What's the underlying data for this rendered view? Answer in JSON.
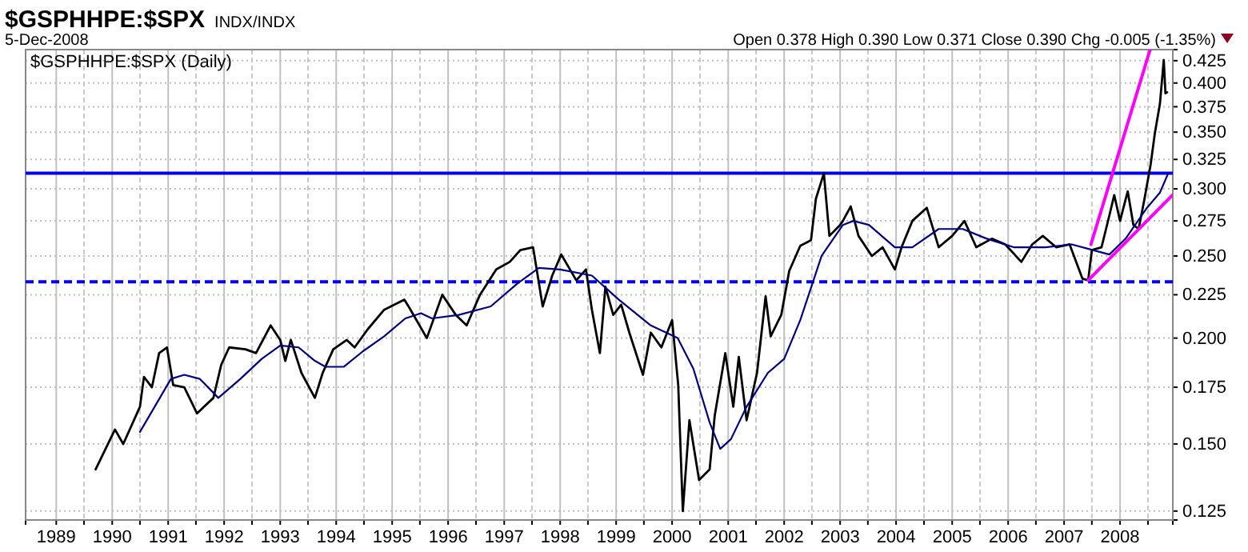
{
  "chart_data": {
    "type": "line",
    "title": "$GSPHHPE:$SPX",
    "subtitle": "INDX/INDX",
    "annotations": [
      "5-Dec-2008",
      "Open 0.378 High 0.390 Low 0.371 Close 0.390 Chg -0.005 (-1.35%)"
    ],
    "log": true,
    "grid": true,
    "legend": "top left",
    "tick_labels": "xy",
    "xlim": [
      "1988-06-15",
      "2008-12-10"
    ],
    "xticks": [
      "1989",
      {
        "value": "1989-07",
        "label": null
      },
      "1990",
      {
        "value": "1990-07",
        "label": null
      },
      "1991",
      {
        "value": "1991-07",
        "label": null
      },
      "1992",
      {
        "value": "1992-07",
        "label": null
      },
      "1993",
      {
        "value": "1993-07",
        "label": null
      },
      "1994",
      {
        "value": "1994-07",
        "label": null
      },
      "1995",
      {
        "value": "1995-07",
        "label": null
      },
      "1996",
      {
        "value": "1996-07",
        "label": null
      },
      "1997",
      {
        "value": "1997-07",
        "label": null
      },
      "1998",
      {
        "value": "1998-07",
        "label": null
      },
      "1999",
      {
        "value": "1999-07",
        "label": null
      },
      "2000",
      {
        "value": "2000-07",
        "label": null
      },
      "2001",
      {
        "value": "2001-07",
        "label": null
      },
      "2002",
      {
        "value": "2002-07",
        "label": null
      },
      "2003",
      {
        "value": "2003-07",
        "label": null
      },
      "2004",
      {
        "value": "2004-07",
        "label": null
      },
      "2005",
      {
        "value": "2005-07",
        "label": null
      },
      "2006",
      {
        "value": "2006-07",
        "label": null
      },
      "2007",
      {
        "value": "2007-07",
        "label": null
      },
      "2008",
      {
        "value": "2008-07",
        "label": null
      }
    ],
    "ylim": [
      0.122,
      0.438
    ],
    "yticks": [
      {
        "value": 0.125,
        "label": "0.125"
      },
      {
        "value": 0.15,
        "label": "0.150"
      },
      {
        "value": 0.175,
        "label": "0.175"
      },
      {
        "value": 0.2,
        "label": "0.200"
      },
      {
        "value": 0.225,
        "label": "0.225"
      },
      {
        "value": 0.25,
        "label": "0.250"
      },
      {
        "value": 0.275,
        "label": "0.275"
      },
      {
        "value": 0.3,
        "label": "0.300"
      },
      {
        "value": 0.325,
        "label": "0.325"
      },
      {
        "value": 0.35,
        "label": "0.350"
      },
      {
        "value": 0.375,
        "label": "0.375"
      },
      {
        "value": 0.4,
        "label": "0.400"
      },
      {
        "value": 0.425,
        "label": "0.425"
      }
    ],
    "ref_lines": [
      {
        "axis": "y",
        "value": 0.313,
        "label": null,
        "color": "#0000ee",
        "line_style": "solid"
      },
      {
        "axis": "y",
        "value": 0.233,
        "label": null,
        "color": "#0000ee",
        "line_style": "dashed"
      }
    ],
    "series": [
      {
        "name": "$GSPHHPE:$SPX (Daily)",
        "color": "#000000",
        "x": [
          "1989-09-15",
          "1990-01-19",
          "1990-03-14",
          "1990-07-01",
          "1990-07-27",
          "1990-09-17",
          "1990-11-03",
          "1990-12-24",
          "1991-02-03",
          "1991-04-16",
          "1991-07-08",
          "1991-10-23",
          "1991-12-13",
          "1992-02-03",
          "1992-05-19",
          "1992-07-27",
          "1992-10-30",
          "1993-01-01",
          "1993-02-03",
          "1993-03-11",
          "1993-05-19",
          "1993-08-15",
          "1993-10-05",
          "1993-12-13",
          "1994-03-11",
          "1994-05-01",
          "1994-07-27",
          "1994-11-10",
          "1995-03-22",
          "1995-05-01",
          "1995-08-15",
          "1995-11-24",
          "1996-02-20",
          "1996-05-01",
          "1996-07-27",
          "1996-11-10",
          "1997-02-06",
          "1997-04-16",
          "1997-07-08",
          "1997-09-09",
          "1997-11-10",
          "1998-01-08",
          "1998-04-16",
          "1998-06-18",
          "1998-07-27",
          "1998-09-17",
          "1998-10-23",
          "1998-12-13",
          "1999-02-03",
          "1999-03-28",
          "1999-06-25",
          "1999-08-15",
          "1999-10-23",
          "2000-01-01",
          "2000-02-10",
          "2000-03-11",
          "2000-04-23",
          "2000-06-25",
          "2000-09-02",
          "2000-10-05",
          "2000-12-13",
          "2001-02-03",
          "2001-03-11",
          "2001-05-01",
          "2001-07-08",
          "2001-09-02",
          "2001-10-05",
          "2001-12-13",
          "2002-02-03",
          "2002-04-16",
          "2002-06-25",
          "2002-07-27",
          "2002-09-17",
          "2002-10-23",
          "2003-01-01",
          "2003-01-19",
          "2003-03-11",
          "2003-05-01",
          "2003-07-27",
          "2003-10-05",
          "2003-12-24",
          "2004-02-06",
          "2004-04-16",
          "2004-07-19",
          "2004-10-05",
          "2005-01-01",
          "2005-03-22",
          "2005-06-07",
          "2005-09-17",
          "2005-12-13",
          "2006-03-28",
          "2006-06-07",
          "2006-08-15",
          "2006-11-10",
          "2007-02-06",
          "2007-05-01",
          "2007-06-07",
          "2007-07-01",
          "2007-09-02",
          "2007-10-23",
          "2007-11-24",
          "2008-01-01",
          "2008-02-20",
          "2008-03-28",
          "2008-05-01",
          "2008-06-07",
          "2008-07-19",
          "2008-08-15",
          "2008-09-17",
          "2008-10-12",
          "2008-10-23",
          "2008-11-03"
        ],
        "values": [
          0.14,
          0.156,
          0.15,
          0.166,
          0.18,
          0.175,
          0.192,
          0.195,
          0.176,
          0.175,
          0.163,
          0.17,
          0.186,
          0.195,
          0.194,
          0.192,
          0.207,
          0.199,
          0.188,
          0.199,
          0.182,
          0.17,
          0.182,
          0.194,
          0.199,
          0.195,
          0.205,
          0.216,
          0.222,
          0.216,
          0.2,
          0.225,
          0.213,
          0.207,
          0.225,
          0.241,
          0.246,
          0.254,
          0.256,
          0.218,
          0.237,
          0.251,
          0.234,
          0.241,
          0.216,
          0.192,
          0.23,
          0.213,
          0.219,
          0.203,
          0.181,
          0.203,
          0.195,
          0.21,
          0.176,
          0.125,
          0.16,
          0.136,
          0.14,
          0.162,
          0.192,
          0.166,
          0.19,
          0.16,
          0.182,
          0.224,
          0.201,
          0.213,
          0.24,
          0.257,
          0.261,
          0.292,
          0.313,
          0.264,
          0.272,
          0.275,
          0.286,
          0.264,
          0.25,
          0.256,
          0.241,
          0.256,
          0.275,
          0.285,
          0.256,
          0.264,
          0.275,
          0.256,
          0.262,
          0.258,
          0.246,
          0.258,
          0.264,
          0.256,
          0.258,
          0.235,
          0.234,
          0.254,
          0.256,
          0.279,
          0.295,
          0.275,
          0.298,
          0.272,
          0.269,
          0.291,
          0.321,
          0.349,
          0.378,
          0.426,
          0.389,
          0.39
        ]
      },
      {
        "color": "#000080",
        "x": [
          "1990-07-01",
          "1990-10-05",
          "1991-01-19",
          "1991-04-16",
          "1991-07-27",
          "1991-11-24",
          "1992-04-16",
          "1992-09-02",
          "1993-01-01",
          "1993-05-01",
          "1993-08-15",
          "1993-10-23",
          "1994-02-20",
          "1994-06-25",
          "1994-11-10",
          "1995-03-28",
          "1995-07-08",
          "1995-09-17",
          "1996-03-11",
          "1996-10-05",
          "1997-03-28",
          "1997-08-15",
          "1998-01-01",
          "1998-07-27",
          "1999-01-19",
          "1999-08-15",
          "2000-02-06",
          "2000-05-19",
          "2000-09-02",
          "2000-11-10",
          "2001-01-19",
          "2001-05-01",
          "2001-09-17",
          "2002-01-01",
          "2002-04-16",
          "2002-09-02",
          "2003-01-19",
          "2003-03-28",
          "2003-07-08",
          "2003-12-24",
          "2004-04-16",
          "2004-10-05",
          "2005-03-11",
          "2005-08-15",
          "2006-02-06",
          "2006-09-02",
          "2007-02-20",
          "2007-07-08",
          "2007-10-23",
          "2008-02-06",
          "2008-06-25",
          "2008-09-17",
          "2008-11-10"
        ],
        "values": [
          0.155,
          0.166,
          0.179,
          0.181,
          0.179,
          0.17,
          0.179,
          0.189,
          0.196,
          0.195,
          0.188,
          0.185,
          0.185,
          0.193,
          0.201,
          0.211,
          0.214,
          0.211,
          0.213,
          0.218,
          0.232,
          0.242,
          0.241,
          0.237,
          0.222,
          0.207,
          0.2,
          0.184,
          0.159,
          0.148,
          0.152,
          0.166,
          0.182,
          0.189,
          0.21,
          0.25,
          0.272,
          0.275,
          0.272,
          0.256,
          0.256,
          0.269,
          0.269,
          0.262,
          0.256,
          0.256,
          0.258,
          0.254,
          0.251,
          0.262,
          0.285,
          0.297,
          0.313
        ]
      },
      {
        "color": "#ff00ff",
        "x": [
          "2007-06-25",
          "2008-07-15"
        ],
        "values": [
          0.258,
          0.438
        ]
      },
      {
        "color": "#ff00ff",
        "x": [
          "2007-06-07",
          "2008-12-08"
        ],
        "values": [
          0.234,
          0.295
        ]
      }
    ]
  }
}
